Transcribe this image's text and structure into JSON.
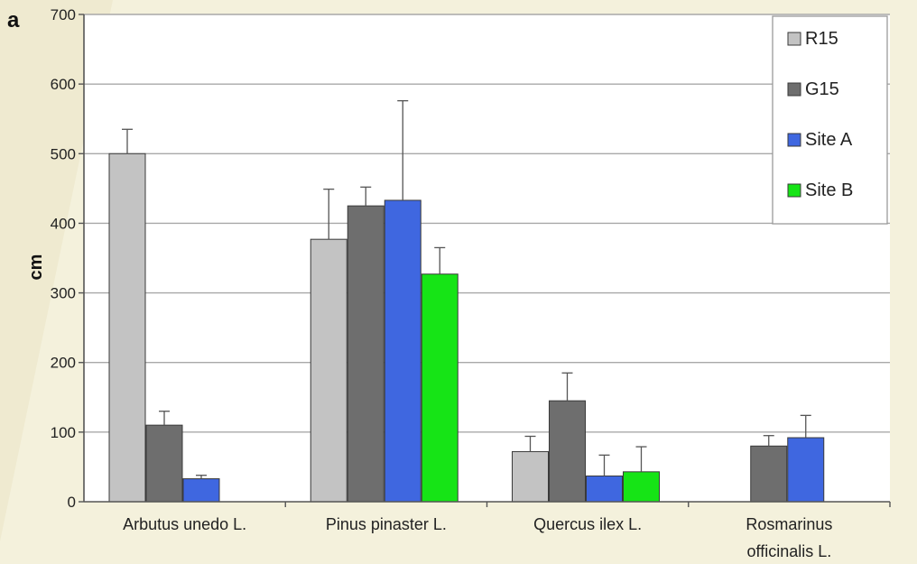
{
  "chart_data": {
    "type": "bar",
    "panel_label": "a",
    "title": "",
    "xlabel": "",
    "ylabel": "cm",
    "ylim": [
      0,
      700
    ],
    "yticks": [
      0,
      100,
      200,
      300,
      400,
      500,
      600,
      700
    ],
    "grid": true,
    "legend_position": "top-right",
    "categories": [
      [
        "Arbutus unedo L."
      ],
      [
        "Pinus pinaster L."
      ],
      [
        "Quercus ilex L."
      ],
      [
        "Rosmarinus",
        "officinalis L."
      ]
    ],
    "series": [
      {
        "name": "R15",
        "color": "#c3c3c3",
        "values": [
          500,
          377,
          72,
          null
        ],
        "errors": [
          35,
          72,
          22,
          null
        ]
      },
      {
        "name": "G15",
        "color": "#6e6e6e",
        "values": [
          110,
          425,
          145,
          80
        ],
        "errors": [
          20,
          27,
          40,
          15
        ]
      },
      {
        "name": "Site A",
        "color": "#3f67e0",
        "values": [
          33,
          433,
          37,
          92
        ],
        "errors": [
          5,
          143,
          30,
          32
        ]
      },
      {
        "name": "Site B",
        "color": "#16e416",
        "values": [
          null,
          327,
          43,
          null
        ],
        "errors": [
          null,
          38,
          36,
          null
        ]
      }
    ]
  }
}
